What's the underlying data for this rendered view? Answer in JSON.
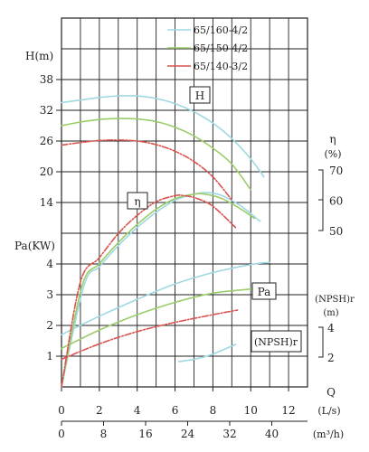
{
  "chart_data": {
    "type": "line",
    "legend_placement": "top-right",
    "x_axis": {
      "label_top": "Q",
      "label_ls": "(L/s)",
      "label_m3h": "(m³/h)",
      "ticks_ls": [
        "0",
        "2",
        "4",
        "6",
        "8",
        "10",
        "12"
      ],
      "ticks_m3h": [
        "0",
        "8",
        "16",
        "24",
        "32",
        "40"
      ],
      "range_ls": [
        0,
        13
      ]
    },
    "axes": {
      "H": {
        "label": "H(m)",
        "ticks": [
          "38",
          "32",
          "26",
          "20",
          "14"
        ],
        "range": [
          8,
          38
        ]
      },
      "eta": {
        "label": "η",
        "unit": "(%)",
        "ticks": [
          "70",
          "60",
          "50"
        ],
        "range": [
          20,
          80
        ]
      },
      "Pa": {
        "label": "Pa(KW)",
        "ticks": [
          "4",
          "3",
          "2",
          "1"
        ],
        "range": [
          0,
          5
        ]
      },
      "NPSHr": {
        "label": "(NPSH)r",
        "unit": "(m)",
        "ticks": [
          "4",
          "2"
        ],
        "range": [
          0,
          10
        ]
      }
    },
    "curve_labels": {
      "H": "H",
      "eta": "η",
      "Pa": "Pa",
      "NPSHr": "(NPSH)r"
    },
    "series": [
      {
        "name": "65/160-4/2",
        "color": "#9fd8e2",
        "H": {
          "x": [
            0,
            1,
            2,
            3,
            4,
            5,
            6,
            7,
            8,
            9,
            10,
            10.7
          ],
          "y": [
            33.5,
            34.0,
            34.5,
            34.8,
            34.8,
            34.3,
            33.3,
            31.7,
            29.5,
            26.5,
            22.5,
            19.0
          ]
        },
        "eta": {
          "x": [
            1.2,
            2,
            3,
            4,
            5,
            6,
            7,
            7.7,
            8.5,
            9.5,
            10.5
          ],
          "y": [
            32,
            38,
            45,
            51,
            56,
            60,
            62,
            62.5,
            61.5,
            58,
            53
          ]
        },
        "Pa": {
          "x": [
            0,
            2,
            4,
            6,
            8,
            10,
            11
          ],
          "y": [
            1.7,
            2.3,
            2.85,
            3.35,
            3.72,
            3.98,
            4.05
          ]
        },
        "NPSHr": {
          "x": [
            6.2,
            7,
            8,
            9.2
          ],
          "y": [
            1.7,
            1.85,
            2.2,
            2.85
          ]
        }
      },
      {
        "name": "65/150-4/2",
        "color": "#9bcd6a",
        "H": {
          "x": [
            0,
            1,
            2,
            3,
            4,
            5,
            6,
            7,
            8,
            9,
            10
          ],
          "y": [
            29.0,
            29.7,
            30.2,
            30.4,
            30.3,
            29.8,
            28.7,
            27.0,
            24.6,
            21.5,
            16.5
          ]
        },
        "eta": {
          "x": [
            1.1,
            2,
            3,
            4,
            5,
            6,
            7,
            7.6,
            8.5,
            9.5,
            10.2
          ],
          "y": [
            32,
            39,
            46,
            52,
            57,
            60.5,
            62,
            62,
            60.5,
            57,
            54
          ]
        },
        "Pa": {
          "x": [
            0,
            2,
            4,
            6,
            8,
            10.3
          ],
          "y": [
            1.25,
            1.85,
            2.35,
            2.75,
            3.05,
            3.2
          ]
        }
      },
      {
        "name": "65/140-3/2",
        "color": "#d9534f",
        "H": {
          "x": [
            0,
            1,
            2,
            3,
            4,
            5,
            6,
            7,
            8,
            9
          ],
          "y": [
            25.2,
            25.7,
            26.1,
            26.2,
            26.0,
            25.3,
            24.0,
            22.0,
            19.0,
            14.5
          ]
        },
        "eta": {
          "x": [
            1.0,
            2,
            3,
            4,
            5,
            6,
            6.5,
            7.2,
            8,
            9.2
          ],
          "y": [
            33,
            41,
            49,
            55,
            59.5,
            61.5,
            61.5,
            60.5,
            58,
            51
          ]
        },
        "Pa": {
          "x": [
            0,
            2,
            4,
            6,
            8,
            9.3
          ],
          "y": [
            0.9,
            1.4,
            1.8,
            2.1,
            2.35,
            2.5
          ]
        }
      }
    ]
  }
}
